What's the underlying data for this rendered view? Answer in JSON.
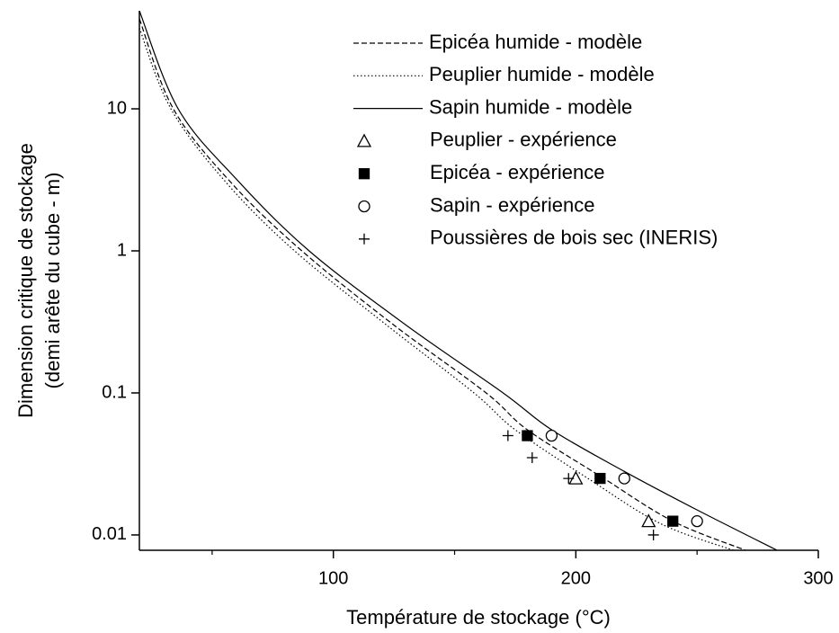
{
  "chart_data": {
    "type": "line",
    "xlabel": "Température de stockage (°C)",
    "ylabel": [
      "Dimension critique de stockage",
      "(demi arête du cube - m)"
    ],
    "xlim": [
      20,
      300
    ],
    "xticks": [
      100,
      200,
      300
    ],
    "xminor_ticks": [
      50,
      150,
      250
    ],
    "ylim": [
      0.0078,
      49
    ],
    "yticks": [
      0.01,
      0.1,
      1,
      10
    ],
    "log_y": true,
    "legend": "upper right",
    "series": [
      {
        "name": "Epicéa humide - modèle",
        "color": "#000000",
        "line": "dash",
        "marker": "none",
        "x": [
          20,
          34,
          58,
          87,
          125,
          163,
          180,
          210,
          240,
          270
        ],
        "values": [
          43,
          10,
          3,
          1,
          0.3,
          0.1,
          0.055,
          0.026,
          0.0125,
          0.0078
        ]
      },
      {
        "name": "Peuplier humide - modèle",
        "color": "#000000",
        "line": "dot",
        "marker": "none",
        "x": [
          20,
          33,
          56,
          84,
          122,
          158,
          175,
          205,
          235,
          265
        ],
        "values": [
          37,
          10,
          3,
          1,
          0.3,
          0.1,
          0.055,
          0.025,
          0.012,
          0.0078
        ]
      },
      {
        "name": "Sapin humide - modèle",
        "color": "#000000",
        "line": "solid",
        "marker": "none",
        "x": [
          20,
          36,
          60,
          90,
          130,
          170,
          190,
          220,
          250,
          283
        ],
        "values": [
          49,
          10,
          3.2,
          1,
          0.3,
          0.1,
          0.055,
          0.028,
          0.015,
          0.0078
        ]
      },
      {
        "name": "Peuplier - expérience",
        "color": "#000000",
        "line": "none",
        "marker": "triangle",
        "x": [
          200,
          230
        ],
        "values": [
          0.025,
          0.0125
        ]
      },
      {
        "name": "Epicéa - expérience",
        "color": "#000000",
        "line": "none",
        "marker": "square",
        "x": [
          180,
          210,
          240
        ],
        "values": [
          0.05,
          0.025,
          0.0125
        ]
      },
      {
        "name": "Sapin - expérience",
        "color": "#000000",
        "line": "none",
        "marker": "circle",
        "x": [
          190,
          220,
          250
        ],
        "values": [
          0.05,
          0.025,
          0.0125
        ]
      },
      {
        "name": "Poussières de bois sec (INERIS)",
        "color": "#000000",
        "line": "none",
        "marker": "plus",
        "x": [
          172,
          182,
          197,
          232
        ],
        "values": [
          0.05,
          0.035,
          0.025,
          0.01
        ]
      }
    ]
  }
}
